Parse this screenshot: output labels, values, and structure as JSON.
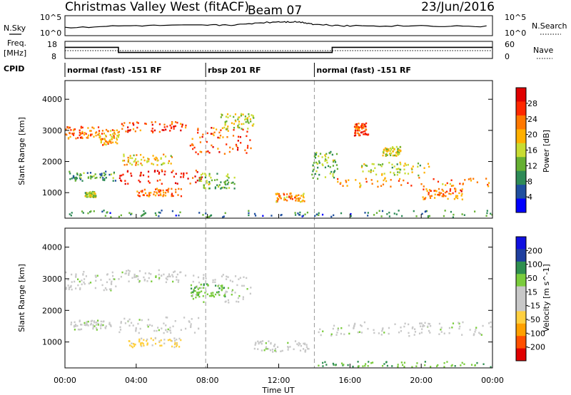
{
  "header": {
    "station": "Christmas Valley West (fitACF)",
    "beam": "Beam 07",
    "date": "23/Jun/2016"
  },
  "labels": {
    "nsky": "N.Sky",
    "nsearch": "N.Search",
    "freq_line1": "Freq.",
    "freq_line2": "[MHz]",
    "nave": "Nave",
    "cpid": "CPID",
    "x_axis": "Time UT"
  },
  "colors": {
    "power": [
      "#0000ff",
      "#1f4f9f",
      "#2e8b57",
      "#66b032",
      "#c8dc32",
      "#ffb000",
      "#ff7800",
      "#ff2800",
      "#e00000"
    ],
    "velocity": [
      "#e00000",
      "#ff5000",
      "#ffa000",
      "#ffd040",
      "#c8c8c8",
      "#c8c8c8",
      "#7acc3c",
      "#2f8f4f",
      "#1f3f9f",
      "#1010e0"
    ],
    "ground_scatter": "#c8c8c8"
  },
  "noise_panel": {
    "left_ticks": [
      "10^5",
      "10^0"
    ],
    "right_ticks": [
      "10^5",
      "10^0"
    ]
  },
  "freq_panel": {
    "left_ticks": [
      "18",
      "8"
    ],
    "right_ticks": [
      "60",
      "0"
    ]
  },
  "cpid_segments": [
    {
      "label": "normal (fast) -151 RF",
      "start_hour": 0,
      "end_hour": 7.9
    },
    {
      "label": "rbsp 201 RF",
      "start_hour": 7.9,
      "end_hour": 14
    },
    {
      "label": "normal (fast) -151 RF",
      "start_hour": 14,
      "end_hour": 24
    }
  ],
  "power_colorbar": {
    "label": "Power [dB]",
    "ticks": [
      "28",
      "24",
      "20",
      "16",
      "12",
      "8",
      "4"
    ]
  },
  "velocity_colorbar": {
    "label": "Velocity [m s^-1]",
    "ticks": [
      "200",
      "100",
      "50",
      "15",
      "-15",
      "-50",
      "-100",
      "-200"
    ]
  },
  "chart_data": [
    {
      "type": "heatmap",
      "title": "Power",
      "xlabel": "",
      "ylabel": "Slant Range [km]",
      "xlim": [
        0,
        24
      ],
      "ylim": [
        180,
        4600
      ],
      "x_ticks": [
        "00:00",
        "04:00",
        "08:00",
        "12:00",
        "16:00",
        "20:00",
        "00:00"
      ],
      "y_ticks": [
        1000,
        2000,
        3000,
        4000
      ],
      "clim": [
        0,
        30
      ],
      "regions": [
        {
          "t0": 0.0,
          "t1": 1.9,
          "r0": 2700,
          "r1": 3100,
          "power": 22
        },
        {
          "t0": 1.9,
          "t1": 3.0,
          "r0": 2500,
          "r1": 3000,
          "power": 20
        },
        {
          "t0": 0.2,
          "t1": 2.8,
          "r0": 1350,
          "r1": 1650,
          "power": 10
        },
        {
          "t0": 1.1,
          "t1": 1.7,
          "r0": 820,
          "r1": 1000,
          "power": 14
        },
        {
          "t0": 3.0,
          "t1": 7.7,
          "r0": 1250,
          "r1": 1700,
          "power": 27
        },
        {
          "t0": 3.1,
          "t1": 6.8,
          "r0": 2900,
          "r1": 3250,
          "power": 24
        },
        {
          "t0": 3.2,
          "t1": 6.0,
          "r0": 1850,
          "r1": 2200,
          "power": 18
        },
        {
          "t0": 4.0,
          "t1": 6.5,
          "r0": 850,
          "r1": 1100,
          "power": 22
        },
        {
          "t0": 7.0,
          "t1": 10.4,
          "r0": 2200,
          "r1": 3100,
          "power": 23
        },
        {
          "t0": 7.5,
          "t1": 9.5,
          "r0": 1100,
          "r1": 1600,
          "power": 12
        },
        {
          "t0": 8.7,
          "t1": 10.6,
          "r0": 3000,
          "r1": 3500,
          "power": 15
        },
        {
          "t0": 11.8,
          "t1": 13.4,
          "r0": 650,
          "r1": 950,
          "power": 20
        },
        {
          "t0": 13.8,
          "t1": 15.3,
          "r0": 1400,
          "r1": 2300,
          "power": 12
        },
        {
          "t0": 15.2,
          "t1": 24.0,
          "r0": 1150,
          "r1": 1450,
          "power": 21
        },
        {
          "t0": 16.5,
          "t1": 20.5,
          "r0": 1500,
          "r1": 1950,
          "power": 14
        },
        {
          "t0": 20.0,
          "t1": 22.3,
          "r0": 750,
          "r1": 1100,
          "power": 22
        },
        {
          "t0": 16.2,
          "t1": 17.0,
          "r0": 2800,
          "r1": 3200,
          "power": 24
        },
        {
          "t0": 17.8,
          "t1": 18.8,
          "r0": 2150,
          "r1": 2450,
          "power": 15
        },
        {
          "t0": 0.0,
          "t1": 24.0,
          "r0": 180,
          "r1": 400,
          "power": 8
        }
      ]
    },
    {
      "type": "heatmap",
      "title": "Velocity",
      "xlabel": "Time UT",
      "ylabel": "Slant Range [km]",
      "xlim": [
        0,
        24
      ],
      "ylim": [
        180,
        4600
      ],
      "x_ticks": [
        "00:00",
        "04:00",
        "08:00",
        "12:00",
        "16:00",
        "20:00",
        "00:00"
      ],
      "y_ticks": [
        1000,
        2000,
        3000,
        4000
      ],
      "clim": [
        -250,
        250
      ],
      "regions": [
        {
          "t0": 0.0,
          "t1": 3.0,
          "r0": 2600,
          "r1": 3200,
          "velocity": 0
        },
        {
          "t0": 0.3,
          "t1": 2.8,
          "r0": 1350,
          "r1": 1650,
          "velocity": 0
        },
        {
          "t0": 3.0,
          "t1": 7.7,
          "r0": 1250,
          "r1": 1750,
          "velocity": 0
        },
        {
          "t0": 3.1,
          "t1": 6.8,
          "r0": 2850,
          "r1": 3250,
          "velocity": 0
        },
        {
          "t0": 3.5,
          "t1": 6.5,
          "r0": 800,
          "r1": 1100,
          "velocity": -60
        },
        {
          "t0": 7.0,
          "t1": 10.4,
          "r0": 2200,
          "r1": 3100,
          "velocity": 0
        },
        {
          "t0": 7.0,
          "t1": 9.0,
          "r0": 2400,
          "r1": 2800,
          "velocity": 40
        },
        {
          "t0": 10.5,
          "t1": 13.8,
          "r0": 650,
          "r1": 1000,
          "velocity": 0
        },
        {
          "t0": 13.8,
          "t1": 24.0,
          "r0": 1150,
          "r1": 1600,
          "velocity": 0
        },
        {
          "t0": 14.0,
          "t1": 24.0,
          "r0": 180,
          "r1": 350,
          "velocity": 45
        }
      ]
    },
    {
      "type": "line",
      "title": "N.Sky",
      "ylabel": "N.Sky",
      "scale": "log",
      "ylim": [
        1,
        100000
      ],
      "x": [
        0,
        4,
        8,
        10,
        12,
        13,
        14,
        16,
        20,
        24
      ],
      "y": [
        100,
        300,
        400,
        600,
        3000,
        3000,
        600,
        300,
        300,
        200
      ]
    },
    {
      "type": "line",
      "title": "Freq.",
      "ylabel": "Freq. [MHz]",
      "ylim": [
        8,
        18
      ],
      "x": [
        0,
        3.0,
        3.0,
        15.0,
        15.0,
        24
      ],
      "y": [
        14.5,
        14.5,
        11.5,
        11.5,
        14.5,
        14.5
      ]
    }
  ]
}
